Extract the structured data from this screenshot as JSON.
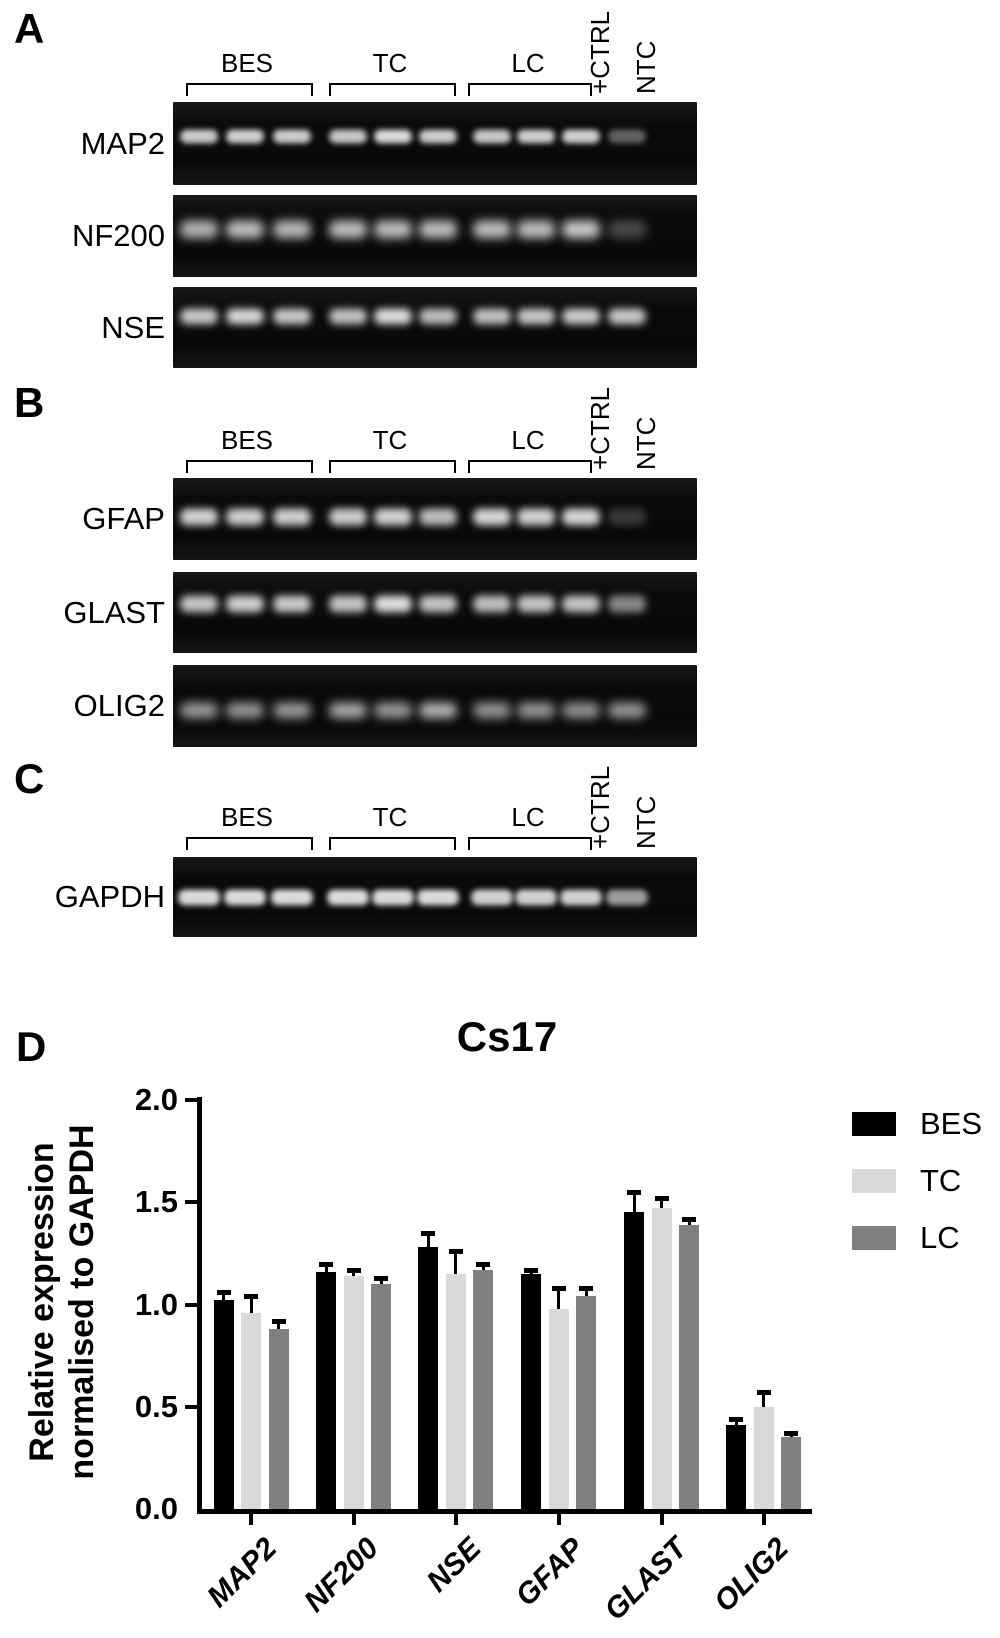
{
  "figure": {
    "lane_groups": [
      "BES",
      "TC",
      "LC"
    ],
    "extra_lanes": [
      "+CTRL",
      "NTC"
    ],
    "panels": [
      {
        "letter": "A",
        "rows": [
          {
            "label": "MAP2",
            "band_y": 0.42,
            "band_h": 13,
            "band_w": 38,
            "blur": 3,
            "intensities": [
              0.92,
              0.95,
              0.93,
              0.9,
              1.0,
              0.93,
              0.9,
              0.93,
              0.95,
              0.42
            ]
          },
          {
            "label": "NF200",
            "band_y": 0.42,
            "band_h": 17,
            "band_w": 38,
            "blur": 5,
            "intensities": [
              0.8,
              0.85,
              0.82,
              0.85,
              0.85,
              0.85,
              0.85,
              0.85,
              0.9,
              0.3
            ]
          },
          {
            "label": "NSE",
            "band_y": 0.37,
            "band_h": 15,
            "band_w": 38,
            "blur": 4,
            "intensities": [
              0.9,
              0.97,
              0.9,
              0.88,
              1.0,
              0.85,
              0.88,
              0.9,
              0.92,
              0.9
            ]
          }
        ]
      },
      {
        "letter": "B",
        "rows": [
          {
            "label": "GFAP",
            "band_y": 0.48,
            "band_h": 16,
            "band_w": 38,
            "blur": 4,
            "intensities": [
              0.95,
              0.93,
              0.93,
              0.92,
              0.95,
              0.85,
              0.97,
              0.95,
              0.97,
              0.22
            ]
          },
          {
            "label": "GLAST",
            "band_y": 0.4,
            "band_h": 16,
            "band_w": 38,
            "blur": 4,
            "intensities": [
              0.88,
              0.92,
              0.9,
              0.88,
              1.0,
              0.88,
              0.85,
              0.88,
              0.88,
              0.6
            ]
          },
          {
            "label": "OLIG2",
            "band_y": 0.55,
            "band_h": 15,
            "band_w": 38,
            "blur": 5,
            "intensities": [
              0.68,
              0.66,
              0.68,
              0.75,
              0.68,
              0.8,
              0.65,
              0.66,
              0.64,
              0.66
            ]
          }
        ]
      },
      {
        "letter": "C",
        "rows": [
          {
            "label": "GAPDH",
            "band_y": 0.5,
            "band_h": 15,
            "band_w": 42,
            "blur": 3,
            "intensities": [
              1.0,
              1.0,
              1.0,
              1.0,
              1.0,
              1.0,
              0.95,
              0.95,
              0.95,
              0.7
            ]
          }
        ]
      }
    ]
  },
  "chart_panel_letter": "D",
  "chart_data": {
    "type": "bar",
    "title": "Cs17",
    "ylabel_lines": [
      "Relative expression",
      "normalised to GAPDH"
    ],
    "categories": [
      "MAP2",
      "NF200",
      "NSE",
      "GFAP",
      "GLAST",
      "OLIG2"
    ],
    "series": [
      {
        "name": "BES",
        "color": "#000000",
        "values": [
          1.02,
          1.16,
          1.28,
          1.15,
          1.45,
          0.41
        ],
        "errors": [
          0.04,
          0.04,
          0.07,
          0.02,
          0.1,
          0.03
        ]
      },
      {
        "name": "TC",
        "color": "#d9d9d9",
        "values": [
          0.96,
          1.14,
          1.15,
          0.98,
          1.47,
          0.5
        ],
        "errors": [
          0.08,
          0.03,
          0.11,
          0.1,
          0.05,
          0.07
        ]
      },
      {
        "name": "LC",
        "color": "#808080",
        "values": [
          0.88,
          1.1,
          1.17,
          1.04,
          1.39,
          0.35
        ],
        "errors": [
          0.04,
          0.03,
          0.03,
          0.04,
          0.03,
          0.02
        ]
      }
    ],
    "ylim": [
      0,
      2
    ],
    "yticks": [
      "0.0",
      "0.5",
      "1.0",
      "1.5",
      "2.0"
    ],
    "legend_position": "right",
    "grid": false
  }
}
